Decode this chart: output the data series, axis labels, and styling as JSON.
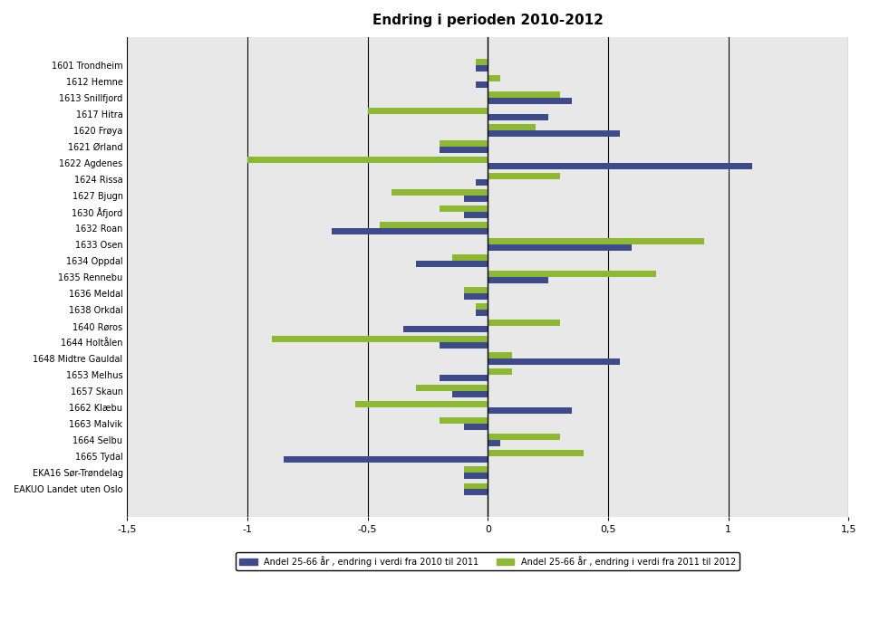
{
  "title": "Endring i perioden 2010-2012",
  "labels": [
    "1601 Trondheim",
    "1612 Hemne",
    "1613 Snillfjord",
    "1617 Hitra",
    "1620 Frøya",
    "1621 Ørland",
    "1622 Agdenes",
    "1624 Rissa",
    "1627 Bjugn",
    "1630 Åfjord",
    "1632 Roan",
    "1633 Osen",
    "1634 Oppdal",
    "1635 Rennebu",
    "1636 Meldal",
    "1638 Orkdal",
    "1640 Røros",
    "1644 Holtålen",
    "1648 Midtre Gauldal",
    "1653 Melhus",
    "1657 Skaun",
    "1662 Klæbu",
    "1663 Malvik",
    "1664 Selbu",
    "1665 Tydal",
    "EKA16 Sør-Trøndelag",
    "EAKUO Landet uten Oslo"
  ],
  "values_2010_2011": [
    -0.05,
    -0.05,
    0.35,
    0.25,
    0.55,
    -0.2,
    1.1,
    -0.05,
    -0.1,
    -0.1,
    -0.65,
    0.6,
    -0.3,
    0.25,
    -0.1,
    -0.05,
    -0.35,
    -0.2,
    0.55,
    -0.2,
    -0.15,
    0.35,
    -0.1,
    0.05,
    -0.85,
    -0.1,
    -0.1
  ],
  "values_2011_2012": [
    -0.05,
    0.05,
    0.3,
    -0.5,
    0.2,
    -0.2,
    -1.0,
    0.3,
    -0.4,
    -0.2,
    -0.45,
    0.9,
    -0.15,
    0.7,
    -0.1,
    -0.05,
    0.3,
    -0.9,
    0.1,
    0.1,
    -0.3,
    -0.55,
    -0.2,
    0.3,
    0.4,
    -0.1,
    -0.1
  ],
  "color_2010_2011": "#3d4b8a",
  "color_2011_2012": "#8db832",
  "xlim": [
    -1.5,
    1.5
  ],
  "xticks": [
    -1.5,
    -1.0,
    -0.5,
    0.0,
    0.5,
    1.0,
    1.5
  ],
  "xlabel_2010_2011": "Andel 25-66 år , endring i verdi fra 2010 til 2011",
  "xlabel_2011_2012": "Andel 25-66 år , endring i verdi fra 2011 til 2012",
  "bg_color": "#e8e8e8",
  "bar_height": 0.38
}
